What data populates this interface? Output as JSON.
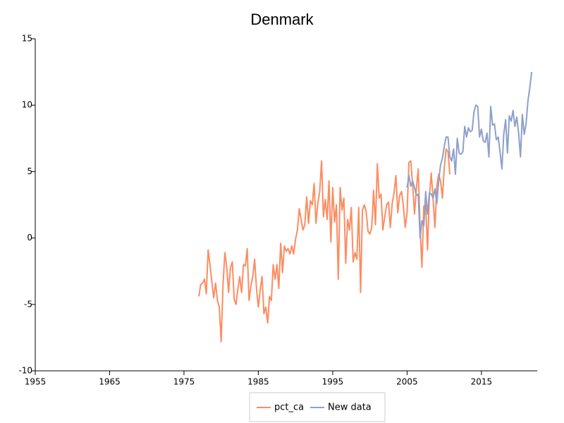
{
  "chart_data": {
    "type": "line",
    "title": "Denmark",
    "xlim": [
      1955,
      2022.5
    ],
    "xticks": [
      1955,
      1965,
      1975,
      1985,
      1995,
      2005,
      2015
    ],
    "ylim": [
      -10,
      15
    ],
    "yticks": [
      -10,
      -5,
      0,
      5,
      10,
      15
    ],
    "grid": false,
    "legend": "bottom",
    "series": [
      {
        "name": "pct_ca",
        "color": "#fc8d62",
        "x": [
          1977,
          1977.25,
          1977.5,
          1977.75,
          1978,
          1978.25,
          1978.5,
          1978.75,
          1979,
          1979.25,
          1979.5,
          1979.75,
          1980,
          1980.25,
          1980.5,
          1980.75,
          1981,
          1981.25,
          1981.5,
          1981.75,
          1982,
          1982.25,
          1982.5,
          1982.75,
          1983,
          1983.25,
          1983.5,
          1983.75,
          1984,
          1984.25,
          1984.5,
          1984.75,
          1985,
          1985.25,
          1985.5,
          1985.75,
          1986,
          1986.25,
          1986.5,
          1986.75,
          1987,
          1987.25,
          1987.5,
          1987.75,
          1988,
          1988.25,
          1988.5,
          1988.75,
          1989,
          1989.25,
          1989.5,
          1989.75,
          1990,
          1990.25,
          1990.5,
          1990.75,
          1991,
          1991.25,
          1991.5,
          1991.75,
          1992,
          1992.25,
          1992.5,
          1992.75,
          1993,
          1993.25,
          1993.5,
          1993.75,
          1994,
          1994.25,
          1994.5,
          1994.75,
          1995,
          1995.25,
          1995.5,
          1995.75,
          1996,
          1996.25,
          1996.5,
          1996.75,
          1997,
          1997.25,
          1997.5,
          1997.75,
          1998,
          1998.25,
          1998.5,
          1998.75,
          1999,
          1999.25,
          1999.5,
          1999.75,
          2000,
          2000.25,
          2000.5,
          2000.75,
          2001,
          2001.25,
          2001.5,
          2001.75,
          2002,
          2002.25,
          2002.5,
          2002.75,
          2003,
          2003.25,
          2003.5,
          2003.75,
          2004,
          2004.25,
          2004.5,
          2004.75,
          2005,
          2005.25,
          2005.5,
          2005.75,
          2006,
          2006.25,
          2006.5,
          2006.75,
          2007,
          2007.25,
          2007.5,
          2007.75,
          2008,
          2008.25,
          2008.5,
          2008.75,
          2009,
          2009.25,
          2009.5,
          2009.75,
          2010,
          2010.25,
          2010.5,
          2010.75
        ],
        "values": [
          -4.4,
          -3.5,
          -3.4,
          -3.1,
          -4.2,
          -0.9,
          -2.0,
          -3.3,
          -4.5,
          -3.4,
          -4.7,
          -5.2,
          -7.8,
          -3.5,
          -1.1,
          -2.2,
          -4.1,
          -2.2,
          -1.8,
          -4.6,
          -5.0,
          -3.8,
          -2.9,
          -4.1,
          -2.0,
          -2.1,
          -0.8,
          -4.7,
          -3.6,
          -2.9,
          -1.6,
          -3.8,
          -5.2,
          -3.9,
          -2.9,
          -5.7,
          -5.2,
          -6.4,
          -4.4,
          -4.7,
          -2.0,
          -3.1,
          -2.0,
          -3.8,
          -0.4,
          -2.6,
          -0.6,
          -1.0,
          -0.8,
          -1.2,
          -0.6,
          -1.2,
          -0.1,
          0.6,
          2.2,
          1.4,
          0.6,
          1.0,
          3.1,
          1.1,
          2.8,
          2.5,
          4.1,
          1.1,
          2.6,
          3.5,
          5.8,
          1.6,
          2.9,
          1.4,
          4.3,
          -0.3,
          3.8,
          1.2,
          2.5,
          -3.1,
          3.8,
          2.1,
          3.0,
          -1.9,
          1.4,
          0.6,
          2.3,
          -1.8,
          -1.1,
          -1.6,
          2.3,
          -4.1,
          2.1,
          2.5,
          2.0,
          0.5,
          0.3,
          0.8,
          3.6,
          1.0,
          5.6,
          3.0,
          3.3,
          0.6,
          1.6,
          2.5,
          2.7,
          0.8,
          2.6,
          3.4,
          4.7,
          1.9,
          3.2,
          3.5,
          2.4,
          0.8,
          1.9,
          5.7,
          5.8,
          4.0,
          1.8,
          3.7,
          5.2,
          0.8,
          -2.2,
          2.4,
          2.5,
          -0.9,
          3.1,
          4.9,
          2.9,
          0.8,
          3.9,
          4.8,
          4.3,
          3.0,
          5.3,
          6.7,
          6.5,
          4.8
        ]
      },
      {
        "name": "New data",
        "color": "#8da0cb",
        "x": [
          2005,
          2005.25,
          2005.5,
          2005.75,
          2006,
          2006.25,
          2006.5,
          2006.75,
          2007,
          2007.25,
          2007.5,
          2007.75,
          2008,
          2008.25,
          2008.5,
          2008.75,
          2009,
          2009.25,
          2009.5,
          2009.75,
          2010,
          2010.25,
          2010.5,
          2010.75,
          2011,
          2011.25,
          2011.5,
          2011.75,
          2012,
          2012.25,
          2012.5,
          2012.75,
          2013,
          2013.25,
          2013.5,
          2013.75,
          2014,
          2014.25,
          2014.5,
          2014.75,
          2015,
          2015.25,
          2015.5,
          2015.75,
          2016,
          2016.25,
          2016.5,
          2016.75,
          2017,
          2017.25,
          2017.5,
          2017.75,
          2018,
          2018.25,
          2018.5,
          2018.75,
          2019,
          2019.25,
          2019.5,
          2019.75,
          2020,
          2020.25,
          2020.5,
          2020.75,
          2021,
          2021.25,
          2021.5,
          2021.75
        ],
        "values": [
          3.8,
          4.7,
          3.9,
          4.3,
          3.8,
          3.2,
          3.3,
          0.0,
          1.3,
          0.9,
          3.5,
          1.8,
          3.4,
          3.3,
          3.0,
          3.7,
          2.6,
          4.3,
          5.5,
          6.0,
          6.9,
          7.6,
          7.6,
          6.1,
          5.8,
          6.7,
          4.8,
          7.5,
          6.4,
          6.3,
          6.5,
          8.4,
          7.6,
          8.3,
          8.0,
          8.1,
          9.5,
          10.0,
          9.9,
          7.6,
          8.2,
          7.3,
          7.2,
          7.9,
          6.1,
          9.9,
          8.5,
          8.6,
          7.4,
          7.6,
          6.5,
          5.2,
          7.8,
          8.9,
          6.4,
          9.2,
          8.8,
          9.6,
          8.4,
          9.1,
          7.9,
          6.1,
          9.3,
          7.8,
          8.6,
          10.3,
          11.3,
          12.5
        ]
      }
    ]
  }
}
